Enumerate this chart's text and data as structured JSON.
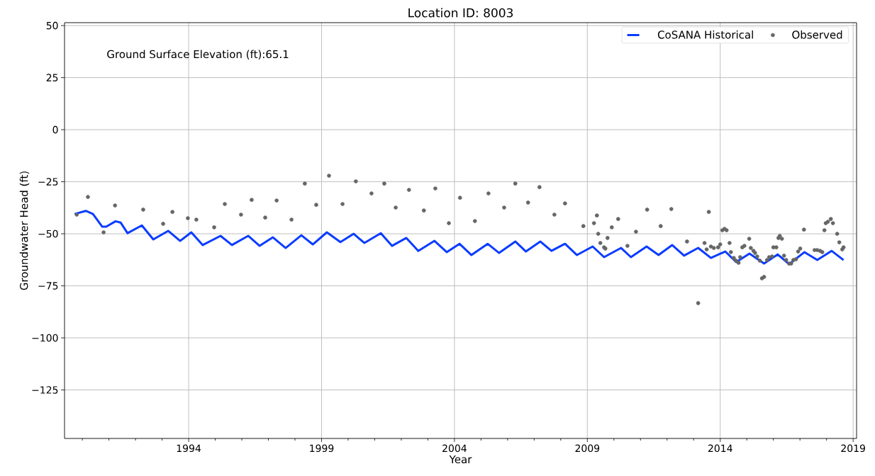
{
  "chart_data": {
    "type": "line",
    "title": "Location ID: 8003",
    "xlabel": "Year",
    "ylabel": "Groundwater Head (ft)",
    "annotations": [
      "Ground Surface Elevation (ft):65.1"
    ],
    "xlim": [
      1989.33,
      2019.13
    ],
    "ylim": [
      -148.3,
      51.4
    ],
    "xticks": [
      {
        "value": 1990,
        "label": null
      },
      {
        "value": 1991,
        "label": null
      },
      {
        "value": 1992,
        "label": null
      },
      {
        "value": 1993,
        "label": null
      },
      1994,
      {
        "value": 1995,
        "label": null
      },
      {
        "value": 1996,
        "label": null
      },
      {
        "value": 1997,
        "label": null
      },
      {
        "value": 1998,
        "label": null
      },
      1999,
      {
        "value": 2000,
        "label": null
      },
      {
        "value": 2001,
        "label": null
      },
      {
        "value": 2002,
        "label": null
      },
      {
        "value": 2003,
        "label": null
      },
      2004,
      {
        "value": 2005,
        "label": null
      },
      {
        "value": 2006,
        "label": null
      },
      {
        "value": 2007,
        "label": null
      },
      {
        "value": 2008,
        "label": null
      },
      2009,
      {
        "value": 2010,
        "label": null
      },
      {
        "value": 2011,
        "label": null
      },
      {
        "value": 2012,
        "label": null
      },
      {
        "value": 2013,
        "label": null
      },
      2014,
      {
        "value": 2015,
        "label": null
      },
      {
        "value": 2016,
        "label": null
      },
      {
        "value": 2017,
        "label": null
      },
      {
        "value": 2018,
        "label": null
      },
      2019
    ],
    "yticks": [
      50,
      25,
      0,
      {
        "value": -25,
        "label": "−25"
      },
      {
        "value": -50,
        "label": "−50"
      },
      {
        "value": -75,
        "label": "−75"
      },
      {
        "value": -100,
        "label": "−100"
      },
      {
        "value": -125,
        "label": "−125"
      }
    ],
    "grid": true,
    "legend": "top right",
    "series": [
      {
        "name": "CoSANA Historical",
        "color": "#0a3cff",
        "marker": "none",
        "x": [
          1989.71,
          1990.13,
          1990.4,
          1990.75,
          1990.9,
          1991.25,
          1991.44,
          1991.7,
          1992.24,
          1992.67,
          1993.23,
          1993.68,
          1994.1,
          1994.53,
          1995.2,
          1995.63,
          1996.24,
          1996.67,
          1997.17,
          1997.65,
          1998.24,
          1998.67,
          1999.2,
          1999.71,
          2000.21,
          2000.61,
          2001.23,
          2001.65,
          2002.19,
          2002.64,
          2003.25,
          2003.71,
          2004.19,
          2004.64,
          2005.25,
          2005.68,
          2006.29,
          2006.69,
          2007.23,
          2007.65,
          2008.16,
          2008.61,
          2009.2,
          2009.63,
          2010.27,
          2010.64,
          2011.23,
          2011.68,
          2012.19,
          2012.64,
          2013.17,
          2013.65,
          2014.19,
          2014.6,
          2015.1,
          2015.65,
          2016.16,
          2016.59,
          2017.17,
          2017.65,
          2018.19,
          2018.64
        ],
        "values": [
          -40.5,
          -39,
          -40.5,
          -46.6,
          -46.6,
          -44,
          -44.6,
          -49.7,
          -46,
          -52.7,
          -48.6,
          -53.4,
          -49.3,
          -55.4,
          -51,
          -55.4,
          -51,
          -55.8,
          -51.7,
          -56.8,
          -50.7,
          -55.1,
          -49.3,
          -54,
          -50,
          -54.4,
          -49.7,
          -55.8,
          -52,
          -58.2,
          -53.4,
          -58.8,
          -54.8,
          -60.2,
          -54.8,
          -59.2,
          -53.7,
          -58.5,
          -53.7,
          -58.2,
          -54.8,
          -60.2,
          -56.1,
          -61.2,
          -56.8,
          -61.2,
          -56.1,
          -60.2,
          -55.4,
          -60.5,
          -56.8,
          -61.6,
          -58.5,
          -63.6,
          -59.5,
          -64.3,
          -59.9,
          -64.6,
          -58.8,
          -62.6,
          -58.2,
          -62.6
        ]
      },
      {
        "name": "Observed",
        "type": "scatter",
        "color": "#666666",
        "marker": "circle",
        "x": [
          1989.79,
          1990.21,
          1990.8,
          1991.23,
          1992.29,
          1993.04,
          1993.39,
          1993.97,
          1994.29,
          1994.96,
          1995.36,
          1995.97,
          1996.37,
          1996.88,
          1997.31,
          1997.87,
          1998.37,
          1998.8,
          1999.28,
          1999.79,
          2000.29,
          2000.88,
          2001.36,
          2001.79,
          2002.29,
          2002.85,
          2003.28,
          2003.79,
          2004.21,
          2004.77,
          2005.28,
          2005.87,
          2006.29,
          2006.77,
          2007.2,
          2007.76,
          2008.16,
          2008.85,
          2009.25,
          2009.36,
          2009.41,
          2009.49,
          2009.63,
          2009.68,
          2009.76,
          2009.92,
          2010.16,
          2010.51,
          2010.83,
          2011.25,
          2011.76,
          2012.16,
          2012.75,
          2013.17,
          2013.41,
          2013.49,
          2013.57,
          2013.65,
          2013.76,
          2013.92,
          2014,
          2014.08,
          2014.16,
          2014.24,
          2014.35,
          2014.4,
          2014.51,
          2014.59,
          2014.69,
          2014.75,
          2014.83,
          2014.91,
          2015.09,
          2015.15,
          2015.25,
          2015.31,
          2015.39,
          2015.49,
          2015.57,
          2015.65,
          2015.76,
          2015.84,
          2015.95,
          2016,
          2016.11,
          2016.19,
          2016.24,
          2016.32,
          2016.4,
          2016.48,
          2016.59,
          2016.67,
          2016.75,
          2016.85,
          2016.93,
          2017.01,
          2017.15,
          2017.55,
          2017.65,
          2017.76,
          2017.84,
          2017.92,
          2017.97,
          2018.05,
          2018.16,
          2018.24,
          2018.4,
          2018.48,
          2018.59,
          2018.64
        ],
        "values": [
          -40.8,
          -32.3,
          -49.3,
          -36.4,
          -38.4,
          -45.2,
          -39.5,
          -42.5,
          -43.2,
          -46.9,
          -35.7,
          -40.8,
          -33.7,
          -42.2,
          -34,
          -43.2,
          -25.9,
          -36.1,
          -22.1,
          -35.7,
          -24.8,
          -30.6,
          -25.9,
          -37.4,
          -28.9,
          -38.8,
          -28.2,
          -44.9,
          -32.7,
          -43.9,
          -30.6,
          -37.4,
          -25.9,
          -35,
          -27.6,
          -40.8,
          -35.4,
          -46.3,
          -44.9,
          -41.2,
          -50,
          -54.4,
          -56.5,
          -57.1,
          -52,
          -46.9,
          -42.9,
          -55.8,
          -49,
          -38.4,
          -46.3,
          -38.1,
          -53.7,
          -83.3,
          -54.4,
          -57.5,
          -39.5,
          -56.1,
          -56.8,
          -56.5,
          -55.1,
          -48.3,
          -47.6,
          -48.3,
          -54.4,
          -58.8,
          -61.6,
          -62.9,
          -63.9,
          -61.2,
          -56.5,
          -55.8,
          -52.4,
          -56.8,
          -58.2,
          -59.2,
          -60.9,
          -62.9,
          -71.4,
          -70.7,
          -62.6,
          -61.2,
          -60.9,
          -56.5,
          -56.5,
          -52,
          -51,
          -52.4,
          -60.5,
          -62.6,
          -64.3,
          -64.3,
          -62.6,
          -62.2,
          -58.5,
          -57.1,
          -48,
          -57.8,
          -57.8,
          -58.2,
          -58.8,
          -48.3,
          -44.9,
          -44.2,
          -42.9,
          -44.9,
          -50,
          -54.1,
          -57.5,
          -56.5
        ]
      }
    ]
  }
}
